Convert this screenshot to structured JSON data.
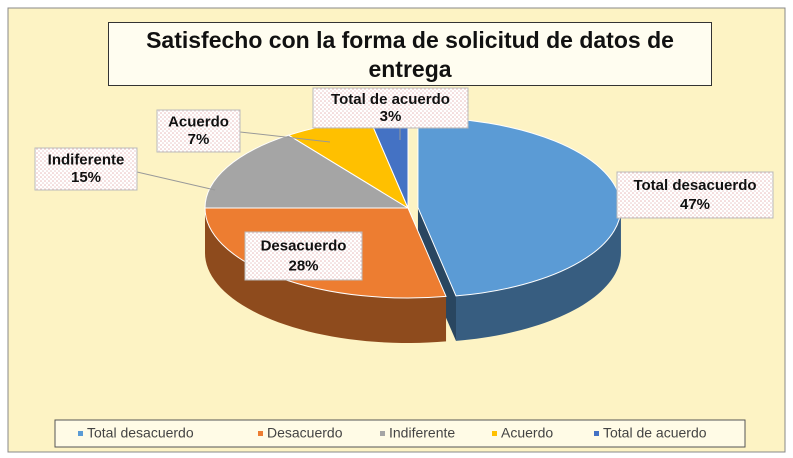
{
  "chart_data": {
    "type": "pie",
    "title": "Satisfecho con la forma de solicitud de datos de entrega",
    "categories": [
      "Total desacuerdo",
      "Desacuerdo",
      "Indiferente",
      "Acuerdo",
      "Total de acuerdo"
    ],
    "values": [
      47,
      28,
      15,
      7,
      3
    ],
    "value_labels": [
      "47%",
      "28%",
      "15%",
      "7%",
      "3%"
    ],
    "colors": [
      "#5b9bd5",
      "#ed7d31",
      "#a5a5a5",
      "#ffc000",
      "#4472c4"
    ],
    "legend": "bottom"
  }
}
